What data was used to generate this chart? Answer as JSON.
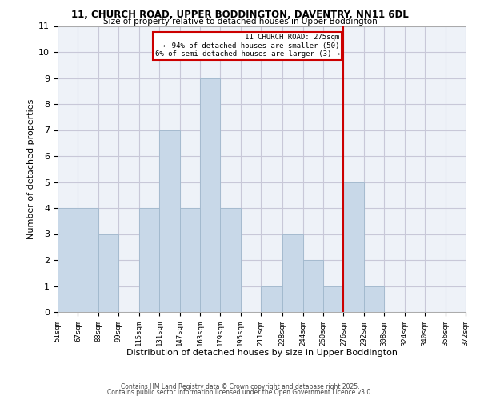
{
  "title1": "11, CHURCH ROAD, UPPER BODDINGTON, DAVENTRY, NN11 6DL",
  "title2": "Size of property relative to detached houses in Upper Boddington",
  "xlabel": "Distribution of detached houses by size in Upper Boddington",
  "ylabel": "Number of detached properties",
  "footer1": "Contains HM Land Registry data © Crown copyright and database right 2025.",
  "footer2": "Contains public sector information licensed under the Open Government Licence v3.0.",
  "bin_edges": [
    51,
    67,
    83,
    99,
    115,
    131,
    147,
    163,
    179,
    195,
    211,
    228,
    244,
    260,
    276,
    292,
    308,
    324,
    340,
    356,
    372
  ],
  "counts": [
    4,
    4,
    3,
    0,
    4,
    7,
    4,
    9,
    4,
    0,
    1,
    3,
    2,
    1,
    5,
    1,
    0,
    0,
    0,
    0
  ],
  "bar_color": "#c8d8e8",
  "bar_edge_color": "#a0b8cc",
  "grid_color": "#c8c8d8",
  "background_color": "#eef2f8",
  "vline_x": 276,
  "vline_color": "#cc0000",
  "annotation_text": "11 CHURCH ROAD: 275sqm\n← 94% of detached houses are smaller (50)\n6% of semi-detached houses are larger (3) →",
  "annotation_box_color": "#cc0000",
  "ylim": [
    0,
    11
  ],
  "yticks": [
    0,
    1,
    2,
    3,
    4,
    5,
    6,
    7,
    8,
    9,
    10,
    11
  ],
  "tick_labels": [
    "51sqm",
    "67sqm",
    "83sqm",
    "99sqm",
    "115sqm",
    "131sqm",
    "147sqm",
    "163sqm",
    "179sqm",
    "195sqm",
    "211sqm",
    "228sqm",
    "244sqm",
    "260sqm",
    "276sqm",
    "292sqm",
    "308sqm",
    "324sqm",
    "340sqm",
    "356sqm",
    "372sqm"
  ]
}
